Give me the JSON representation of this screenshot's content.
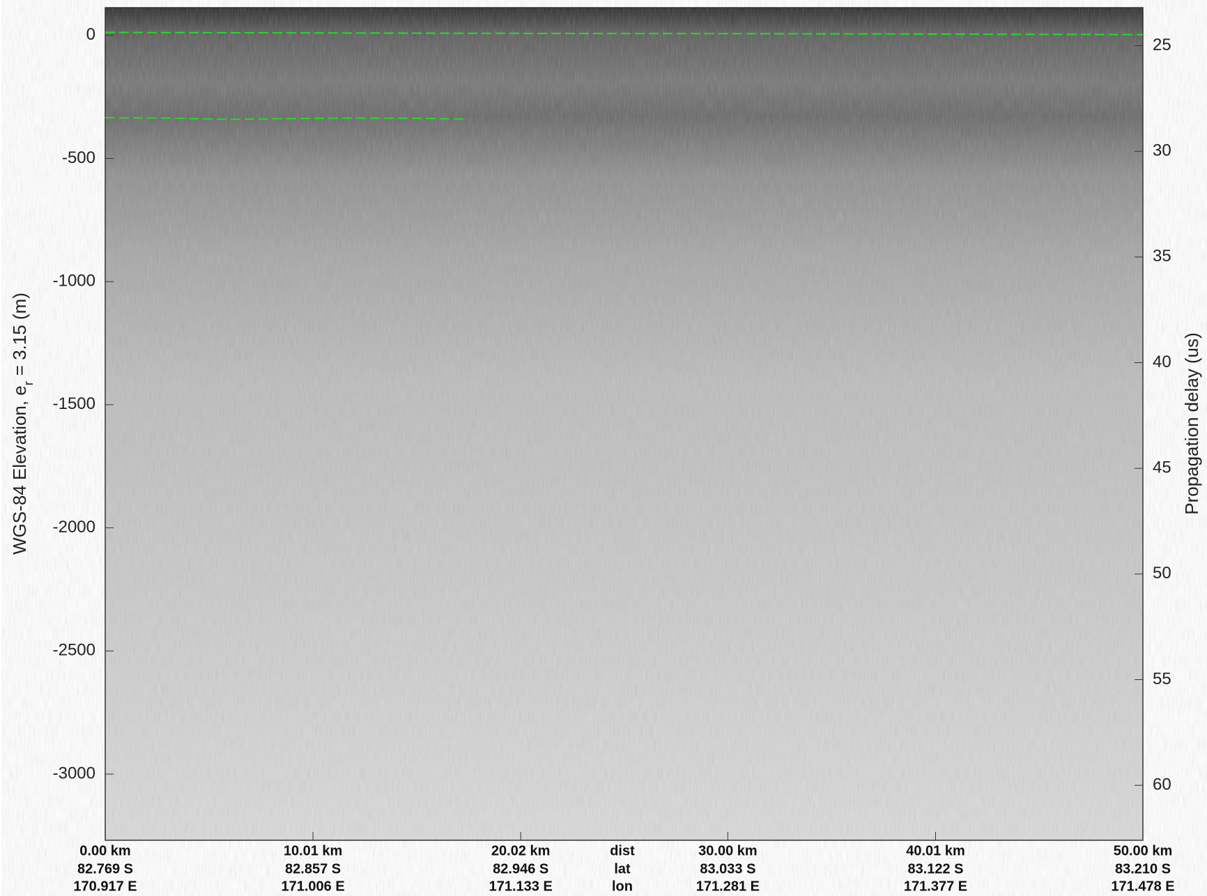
{
  "chart_data": {
    "type": "line",
    "ylabel": "WGS-84 Elevation, e",
    "ylabel_sub": "r",
    "ylabel_end": "= 3.15 (m)",
    "y2label": "Propagation delay (us)",
    "xlim": [
      0,
      50
    ],
    "xticks": [
      {
        "value": 0,
        "label": "0.00 km"
      },
      {
        "value": 10.01,
        "label": "10.01 km"
      },
      {
        "value": 20.02,
        "label": "20.02 km"
      },
      {
        "value": 30,
        "label": "30.00 km"
      },
      {
        "value": 40.01,
        "label": "40.01 km"
      },
      {
        "value": 50,
        "label": "50.00 km"
      }
    ],
    "lat_labels": [
      "82.769 S",
      "82.857 S",
      "82.946 S",
      "83.033 S",
      "83.122 S",
      "83.210 S"
    ],
    "lon_labels": [
      "170.917 E",
      "171.006 E",
      "171.133 E",
      "171.281 E",
      "171.377 E",
      "171.478 E"
    ],
    "row_names": [
      "dist",
      "lat",
      "lon"
    ],
    "ylim": [
      -3268.75,
      112.5
    ],
    "yticks": [
      0,
      -500,
      -1000,
      -1500,
      -2000,
      -2500,
      -3000
    ],
    "y2lim": [
      62.6,
      23.2
    ],
    "y2ticks": [
      25,
      30,
      35,
      40,
      45,
      50,
      55,
      60
    ],
    "series": [
      {
        "color": "#22dd22",
        "x": [
          0,
          10,
          20,
          30,
          40,
          50
        ],
        "values": [
          12,
          10,
          8,
          7,
          5,
          3
        ]
      },
      {
        "color": "#22dd22",
        "x": [
          0,
          3,
          6,
          9,
          12,
          15,
          17.37
        ],
        "values": [
          -334,
          -336,
          -341,
          -338,
          -336,
          -337,
          -340
        ]
      }
    ]
  }
}
